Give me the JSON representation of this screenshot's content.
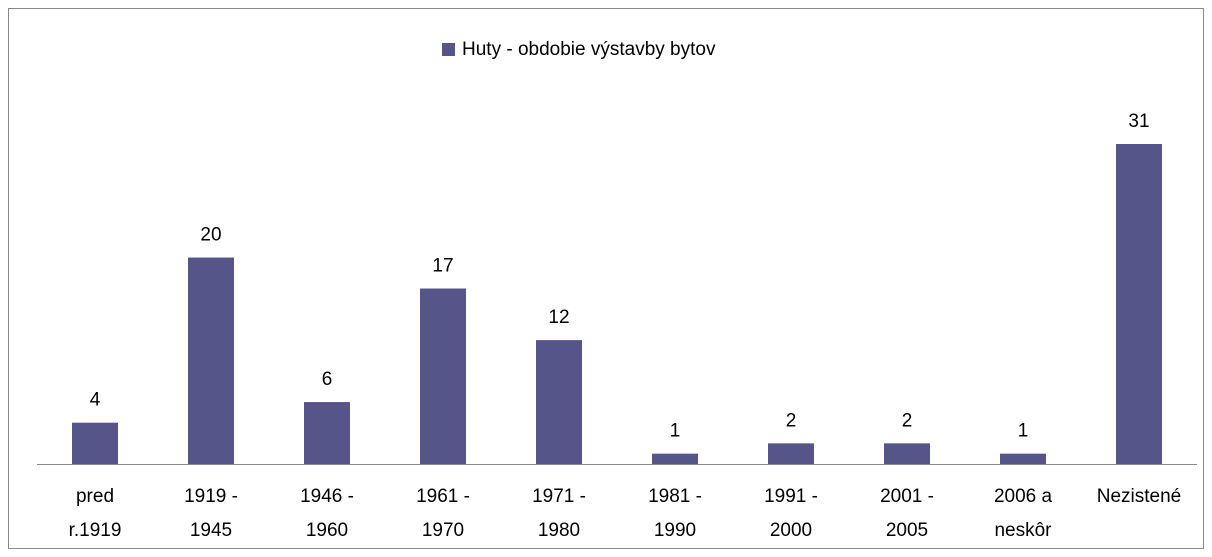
{
  "chart_data": {
    "type": "bar",
    "series": [
      {
        "name": "Huty - obdobie výstavby bytov",
        "color": "#55558a",
        "values": [
          4,
          20,
          6,
          17,
          12,
          1,
          2,
          2,
          1,
          31
        ]
      }
    ],
    "categories": [
      "pred\nr.1919",
      "1919 -\n1945",
      "1946 -\n1960",
      "1961 -\n1970",
      "1971 -\n1980",
      "1981 -\n1990",
      "1991 -\n2000",
      "2001 -\n2005",
      "2006 a\nneskôr",
      "Nezistené"
    ],
    "legend": "top"
  }
}
